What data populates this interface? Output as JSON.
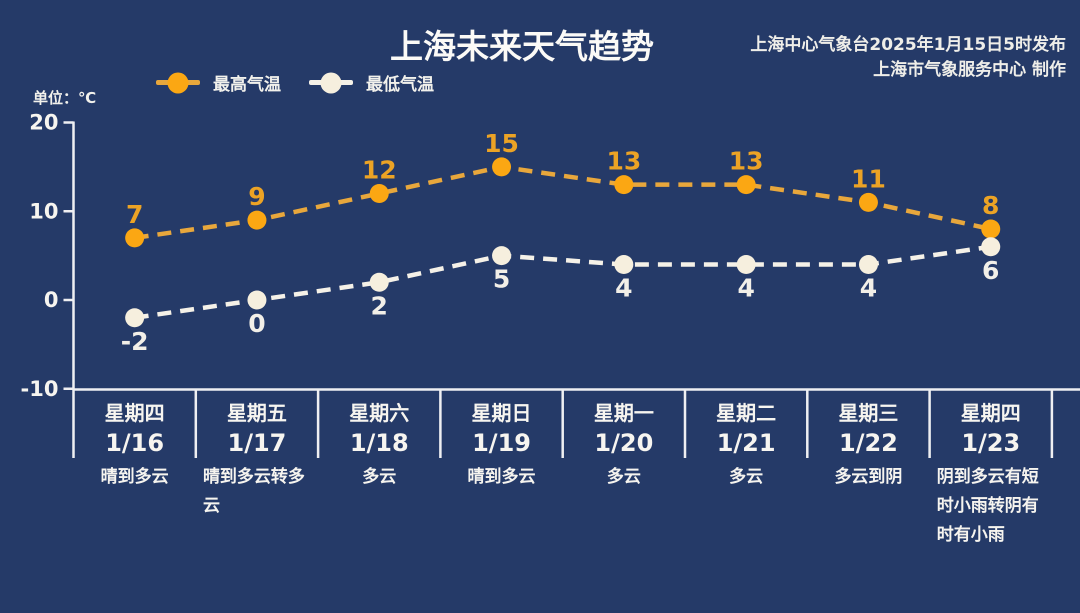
{
  "header": {
    "title": "上海未来天气趋势",
    "publisher_line1": "上海中心气象台2025年1月15日5时发布",
    "publisher_line2": "上海市气象服务中心 制作",
    "unit_label": "单位：℃"
  },
  "legend": {
    "items": [
      {
        "label": "最高气温",
        "line_color": "#E8A73C",
        "dot_color": "#FBA713"
      },
      {
        "label": "最低气温",
        "line_color": "#F5F1E8",
        "dot_color": "#F6EFDE"
      }
    ]
  },
  "colors": {
    "background": "#253A68",
    "axis": "#EFEFF2",
    "label": "#F7F5F0",
    "title": "#FBFAF7"
  },
  "chart_data": {
    "type": "line",
    "title": "上海未来天气趋势",
    "unit": "℃",
    "categories": [
      "星期四",
      "星期五",
      "星期六",
      "星期日",
      "星期一",
      "星期二",
      "星期三",
      "星期四"
    ],
    "dates": [
      "1/16",
      "1/17",
      "1/18",
      "1/19",
      "1/20",
      "1/21",
      "1/22",
      "1/23"
    ],
    "weather": [
      "晴到多云",
      "晴到多云转多云",
      "多云",
      "晴到多云",
      "多云",
      "多云",
      "多云到阴",
      "阴到多云有短时小雨转阴有时有小雨"
    ],
    "series": [
      {
        "name": "最高气温",
        "values": [
          7,
          9,
          12,
          15,
          13,
          13,
          11,
          8
        ],
        "line_color": "#E8A73C",
        "dot_color": "#FBA713",
        "value_color": "#ECA325",
        "label_position": "above"
      },
      {
        "name": "最低气温",
        "values": [
          -2,
          0,
          2,
          5,
          4,
          4,
          4,
          6
        ],
        "line_color": "#F5F1E8",
        "dot_color": "#F6EFDE",
        "value_color": "#F2EFE8",
        "label_position": "below"
      }
    ],
    "yticks": [
      20,
      10,
      0,
      -10
    ],
    "ylim": [
      -10,
      20
    ],
    "line_style": "dashed",
    "grid": false,
    "legend_position": "top-left"
  }
}
